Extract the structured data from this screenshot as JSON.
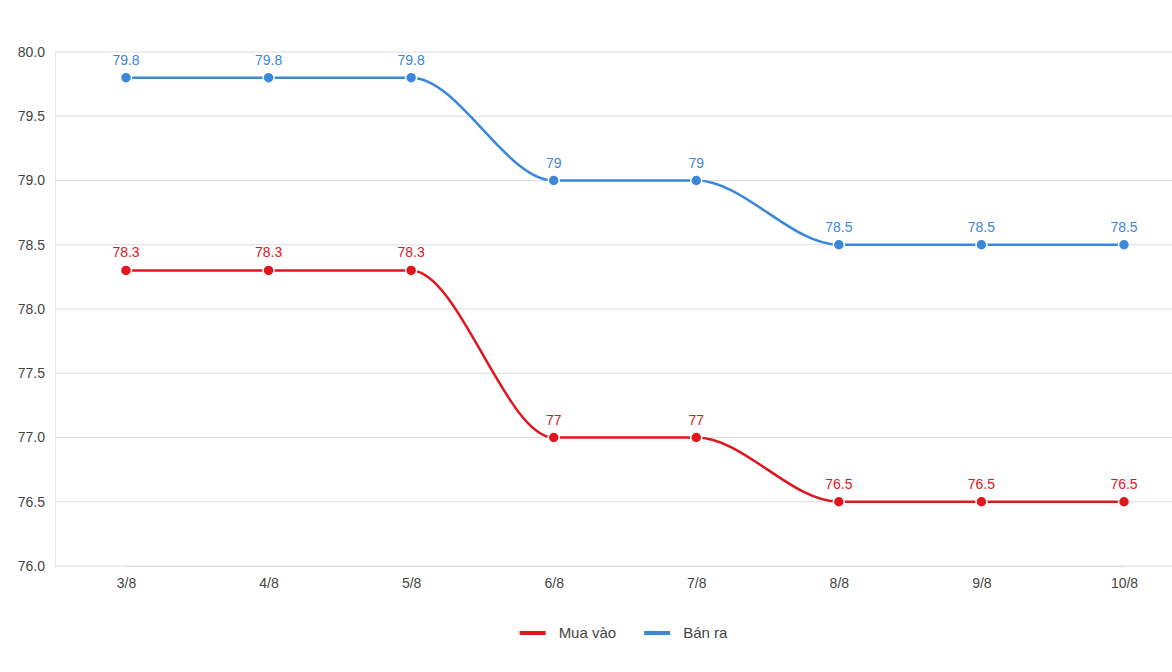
{
  "chart_data": {
    "type": "line",
    "categories": [
      "3/8",
      "4/8",
      "5/8",
      "6/8",
      "7/8",
      "8/8",
      "9/8",
      "10/8"
    ],
    "series": [
      {
        "name": "Mua vào",
        "color": "#e0161e",
        "marker": "circle",
        "values": [
          78.3,
          78.3,
          78.3,
          77,
          77,
          76.5,
          76.5,
          76.5
        ]
      },
      {
        "name": "Bán ra",
        "color": "#3b87d9",
        "marker": "circle",
        "values": [
          79.8,
          79.8,
          79.8,
          79,
          79,
          78.5,
          78.5,
          78.5
        ]
      }
    ],
    "ylim": [
      76,
      80
    ],
    "yticks": [
      {
        "value": 76,
        "label": "76.0"
      },
      {
        "value": 76.5,
        "label": "76.5"
      },
      {
        "value": 77,
        "label": "77.0"
      },
      {
        "value": 77.5,
        "label": "77.5"
      },
      {
        "value": 78,
        "label": "78.0"
      },
      {
        "value": 78.5,
        "label": "78.5"
      },
      {
        "value": 79,
        "label": "79.0"
      },
      {
        "value": 79.5,
        "label": "79.5"
      },
      {
        "value": 80,
        "label": "80.0"
      }
    ],
    "grid": true,
    "legend": "bottom",
    "data_labels": true
  }
}
